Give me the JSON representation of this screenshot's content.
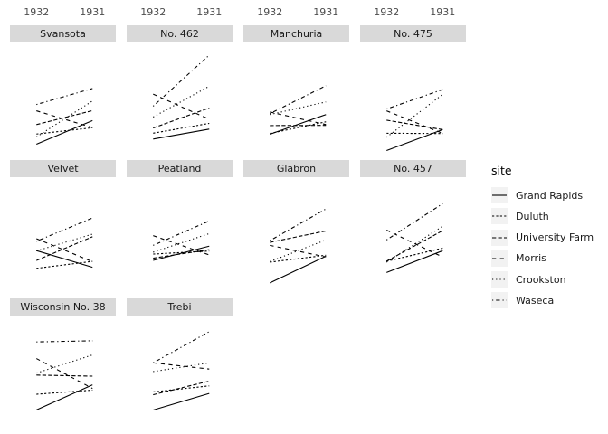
{
  "figure": {
    "background": "#ffffff"
  },
  "legend": {
    "title_label": "site"
  },
  "chart_data": {
    "type": "line",
    "title": "",
    "xlabel": "",
    "ylabel": "",
    "x_labels": [
      "1932",
      "1931"
    ],
    "facet_by": "variety",
    "legend_title": "site",
    "legend_position": "right",
    "grid": false,
    "panel_background": "#ffffff",
    "strip_fill": "#d9d9d9",
    "strip_text_color": "#1a1a1a",
    "axis_text_color": "#4d4d4d",
    "legend_key_fill": "#f2f2f2",
    "line_color": "#000000",
    "ylim": [
      9.4,
      72.7
    ],
    "sites": [
      {
        "name": "Grand Rapids",
        "linetype": "solid",
        "dash": ""
      },
      {
        "name": "Duluth",
        "linetype": "22",
        "dash": "2.2,2.2"
      },
      {
        "name": "University Farm",
        "linetype": "42",
        "dash": "4.3,2.2"
      },
      {
        "name": "Morris",
        "linetype": "44",
        "dash": "4.3,4.3"
      },
      {
        "name": "Crookston",
        "linetype": "13",
        "dash": "1.2,3"
      },
      {
        "name": "Waseca",
        "linetype": "1343",
        "dash": "1.2,3,4.3,3"
      }
    ],
    "facets": [
      {
        "variety": "Svansota",
        "y1932": [
          16.63,
          22.23,
          27.43,
          35.03,
          20.63,
          38.5
        ],
        "y1931": [
          29.67,
          25.7,
          35.13,
          25.77,
          40.47,
          47.33
        ]
      },
      {
        "variety": "No. 462",
        "y1932": [
          19.46,
          22.7,
          25.57,
          44.23,
          31.6,
          37.57
        ],
        "y1931": [
          24.93,
          28.1,
          36.6,
          30.37,
          48.57,
          65.77
        ]
      },
      {
        "variety": "Manchuria",
        "y1932": [
          22.13,
          22.57,
          26.9,
          34.37,
          32.97,
          33.47
        ],
        "y1931": [
          32.97,
          28.97,
          27.0,
          27.43,
          39.93,
          48.87
        ]
      },
      {
        "variety": "No. 475",
        "y1932": [
          13.13,
          22.67,
          29.87,
          35.03,
          20.47,
          36.03
        ],
        "y1931": [
          24.67,
          22.5,
          24.67,
          22.6,
          44.1,
          46.77
        ]
      },
      {
        "variety": "Velvet",
        "y1932": [
          32.23,
          22.47,
          26.8,
          38.83,
          32.07,
          37.4
        ],
        "y1931": [
          23.03,
          26.3,
          39.9,
          26.13,
          41.33,
          50.23
        ]
      },
      {
        "variety": "Peatland",
        "y1932": [
          26.85,
          30.33,
          28.07,
          40.47,
          31.37,
          35.13
        ],
        "y1931": [
          34.7,
          32.0,
          32.77,
          29.87,
          41.6,
          48.57
        ]
      },
      {
        "variety": "Glabron",
        "y1932": [
          14.43,
          25.87,
          36.8,
          35.13,
          26.17,
          37.73
        ],
        "y1931": [
          29.13,
          29.67,
          43.07,
          28.77,
          38.13,
          55.2
        ]
      },
      {
        "variety": "No. 457",
        "y1932": [
          20.18,
          26.37,
          26.43,
          43.53,
          25.86,
          38.13
        ],
        "y1931": [
          32.17,
          33.6,
          43.27,
          28.7,
          45.67,
          58.1
        ]
      },
      {
        "variety": "Wisconsin No. 38",
        "y1932": [
          20.7,
          29.33,
          39.9,
          49.0,
          41.0,
          58.17
        ],
        "y1931": [
          34.5,
          31.6,
          39.3,
          32.5,
          51.0,
          58.8
        ]
      },
      {
        "variety": "Trebi",
        "y1932": [
          20.63,
          30.6,
          29.07,
          46.63,
          41.83,
          46.63
        ],
        "y1931": [
          29.77,
          33.93,
          36.57,
          43.2,
          46.63,
          63.83
        ]
      }
    ]
  }
}
